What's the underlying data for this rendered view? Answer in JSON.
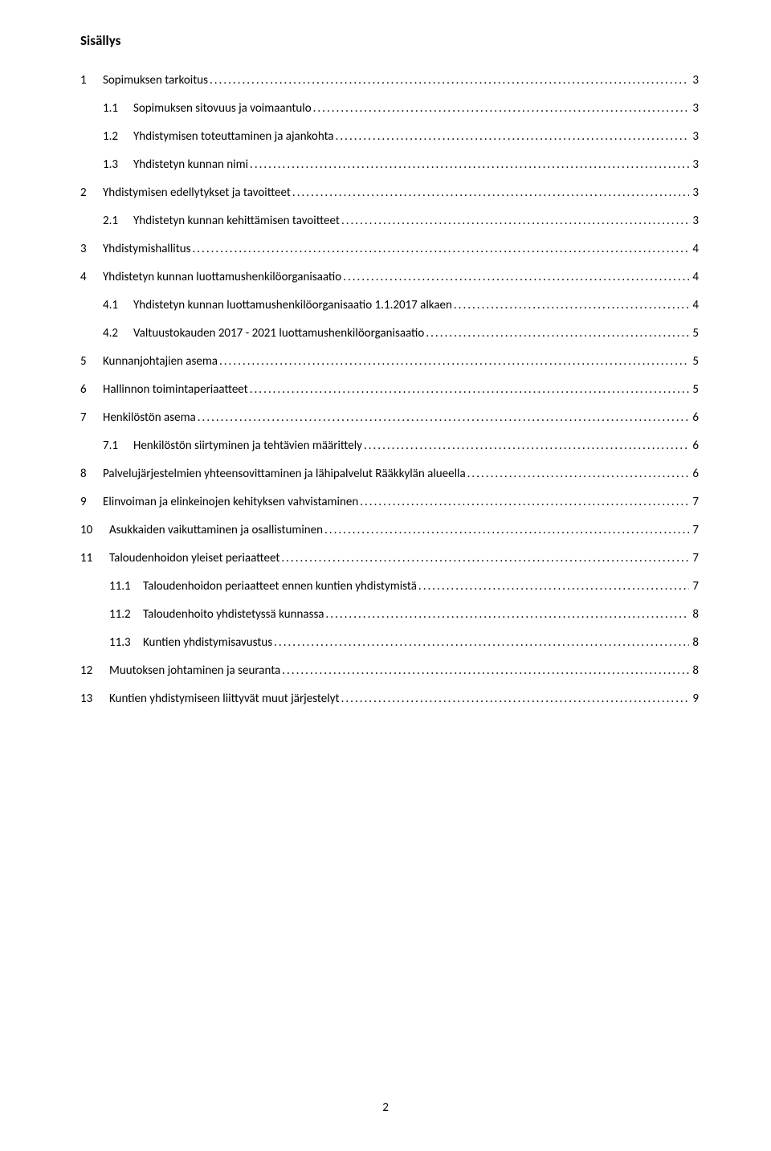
{
  "title": "Sisällys",
  "pageNumber": "2",
  "leader": "..................................................................................................................................................................................................................................................",
  "entries": [
    {
      "indent": 0,
      "num": "1",
      "text": "Sopimuksen tarkoitus",
      "page": "3"
    },
    {
      "indent": 1,
      "num": "1.1",
      "text": "Sopimuksen sitovuus ja voimaantulo",
      "page": "3"
    },
    {
      "indent": 1,
      "num": "1.2",
      "text": "Yhdistymisen toteuttaminen ja ajankohta",
      "page": "3"
    },
    {
      "indent": 1,
      "num": "1.3",
      "text": "Yhdistetyn kunnan nimi",
      "page": "3"
    },
    {
      "indent": 0,
      "num": "2",
      "text": "Yhdistymisen edellytykset ja tavoitteet",
      "page": "3"
    },
    {
      "indent": 1,
      "num": "2.1",
      "text": "Yhdistetyn kunnan kehittämisen tavoitteet",
      "page": "3"
    },
    {
      "indent": 0,
      "num": "3",
      "text": "Yhdistymishallitus",
      "page": "4"
    },
    {
      "indent": 0,
      "num": "4",
      "text": "Yhdistetyn kunnan luottamushenkilöorganisaatio",
      "page": "4"
    },
    {
      "indent": 1,
      "num": "4.1",
      "text": "Yhdistetyn kunnan luottamushenkilöorganisaatio 1.1.2017 alkaen",
      "page": "4"
    },
    {
      "indent": 1,
      "num": "4.2",
      "text": "Valtuustokauden 2017 - 2021 luottamushenkilöorganisaatio",
      "page": "5"
    },
    {
      "indent": 0,
      "num": "5",
      "text": "Kunnanjohtajien asema",
      "page": "5"
    },
    {
      "indent": 0,
      "num": "6",
      "text": "Hallinnon toimintaperiaatteet",
      "page": "5"
    },
    {
      "indent": 0,
      "num": "7",
      "text": "Henkilöstön asema",
      "page": "6"
    },
    {
      "indent": 1,
      "num": "7.1",
      "text": "Henkilöstön siirtyminen ja tehtävien määrittely",
      "page": "6"
    },
    {
      "indent": 0,
      "num": "8",
      "text": "Palvelujärjestelmien yhteensovittaminen ja lähipalvelut Rääkkylän alueella",
      "page": "6"
    },
    {
      "indent": 0,
      "num": "9",
      "text": "Elinvoiman ja elinkeinojen kehityksen vahvistaminen",
      "page": "7"
    },
    {
      "indent": 2,
      "num": "10",
      "text": "Asukkaiden vaikuttaminen ja osallistuminen",
      "page": "7"
    },
    {
      "indent": 2,
      "num": "11",
      "text": "Taloudenhoidon yleiset periaatteet",
      "page": "7"
    },
    {
      "indent": 3,
      "num": "11.1",
      "text": "Taloudenhoidon periaatteet ennen kuntien yhdistymistä",
      "page": "7"
    },
    {
      "indent": 3,
      "num": "11.2",
      "text": "Taloudenhoito yhdistetyssä kunnassa",
      "page": "8"
    },
    {
      "indent": 3,
      "num": "11.3",
      "text": "Kuntien yhdistymisavustus",
      "page": "8"
    },
    {
      "indent": 2,
      "num": "12",
      "text": "Muutoksen johtaminen ja seuranta",
      "page": "8"
    },
    {
      "indent": 2,
      "num": "13",
      "text": "Kuntien yhdistymiseen liittyvät muut järjestelyt",
      "page": "9"
    }
  ]
}
